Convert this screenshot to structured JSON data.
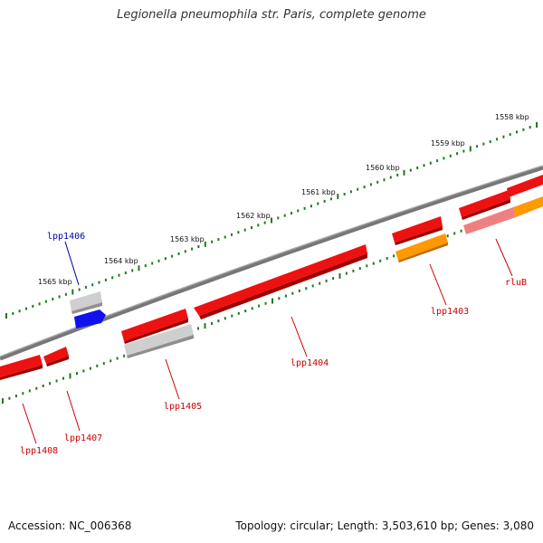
{
  "title": "Legionella pneumophila str. Paris, complete genome",
  "footer": {
    "accession": "Accession: NC_006368",
    "summary": "Topology: circular; Length: 3,503,610 bp; Genes: 3,080"
  },
  "scale_labels": [
    "1558 kbp",
    "1559 kbp",
    "1560 kbp",
    "1561 kbp",
    "1562 kbp",
    "1563 kbp",
    "1564 kbp",
    "1565 kbp"
  ],
  "gene_labels": {
    "lpp1406": "lpp1406",
    "lpp1403": "lpp1403",
    "rluB": "rluB",
    "lpp1404": "lpp1404",
    "lpp1405": "lpp1405",
    "lpp1407": "lpp1407",
    "lpp1408": "lpp1408"
  },
  "colors": {
    "backbone": "#7a7a7a",
    "tick": "#1f7a1f",
    "gene_red": "#ee1111",
    "gene_orange": "#ff9900",
    "gene_gray": "#aaaaaa",
    "gene_blue": "#1111ee",
    "gene_pink": "#f08080",
    "label_red": "#cc0000",
    "label_blue": "#0000aa"
  }
}
